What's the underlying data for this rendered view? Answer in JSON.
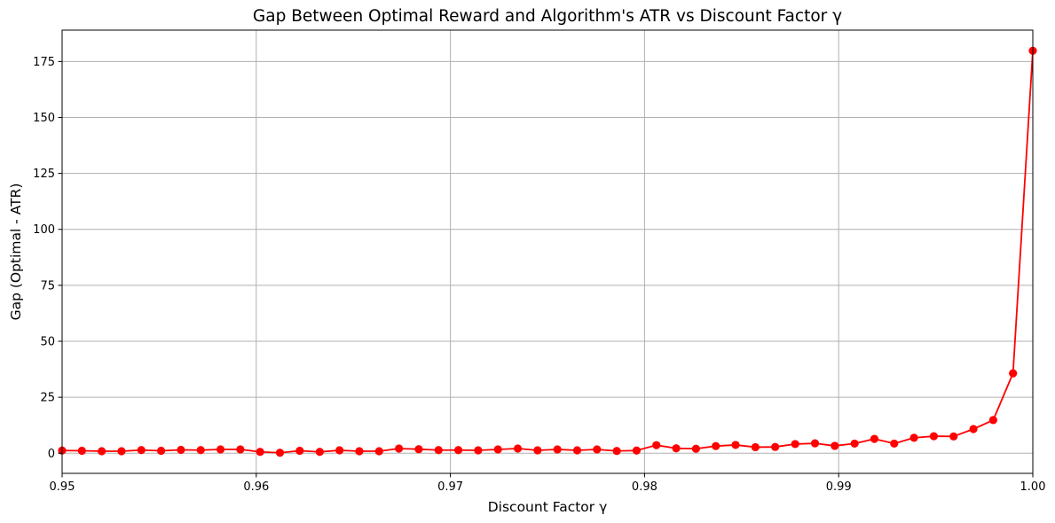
{
  "chart_data": {
    "type": "line",
    "title": "Gap Between Optimal Reward and Algorithm's ATR vs Discount Factor γ",
    "xlabel": "Discount Factor γ",
    "ylabel": "Gap (Optimal - ATR)",
    "xlim": [
      0.95,
      1.0
    ],
    "ylim": [
      -9,
      189
    ],
    "xticks": [
      0.95,
      0.96,
      0.97,
      0.98,
      0.99,
      1.0
    ],
    "xtick_labels": [
      "0.95",
      "0.96",
      "0.97",
      "0.98",
      "0.99",
      "1.00"
    ],
    "yticks": [
      0,
      25,
      50,
      75,
      100,
      125,
      150,
      175
    ],
    "ytick_labels": [
      "0",
      "25",
      "50",
      "75",
      "100",
      "125",
      "150",
      "175"
    ],
    "grid": true,
    "color": "#ff0000",
    "marker": "circle",
    "series": [
      {
        "x": [
          0.95,
          0.95102,
          0.95204,
          0.95306,
          0.95408,
          0.9551,
          0.95612,
          0.95714,
          0.95816,
          0.95918,
          0.9602,
          0.96122,
          0.96224,
          0.96327,
          0.96429,
          0.96531,
          0.96633,
          0.96735,
          0.96837,
          0.96939,
          0.97041,
          0.97143,
          0.97245,
          0.97347,
          0.97449,
          0.97551,
          0.97653,
          0.97755,
          0.97857,
          0.97959,
          0.98061,
          0.98163,
          0.98265,
          0.98367,
          0.98469,
          0.98571,
          0.98673,
          0.98776,
          0.98878,
          0.9898,
          0.99082,
          0.99184,
          0.99286,
          0.99388,
          0.9949,
          0.99592,
          0.99694,
          0.99796,
          0.99898,
          1.0
        ],
        "values": [
          1.2,
          1.1,
          0.9,
          0.9,
          1.4,
          1.1,
          1.5,
          1.4,
          1.7,
          1.7,
          0.6,
          0.2,
          1.1,
          0.6,
          1.3,
          0.9,
          0.9,
          2.1,
          1.8,
          1.4,
          1.4,
          1.3,
          1.7,
          2.1,
          1.3,
          1.7,
          1.3,
          1.7,
          1.0,
          1.2,
          3.6,
          2.2,
          2.0,
          3.2,
          3.7,
          2.7,
          2.8,
          4.1,
          4.4,
          3.3,
          4.3,
          6.4,
          4.3,
          6.9,
          7.6,
          7.5,
          10.8,
          14.8,
          35.7,
          179.8
        ]
      }
    ]
  }
}
